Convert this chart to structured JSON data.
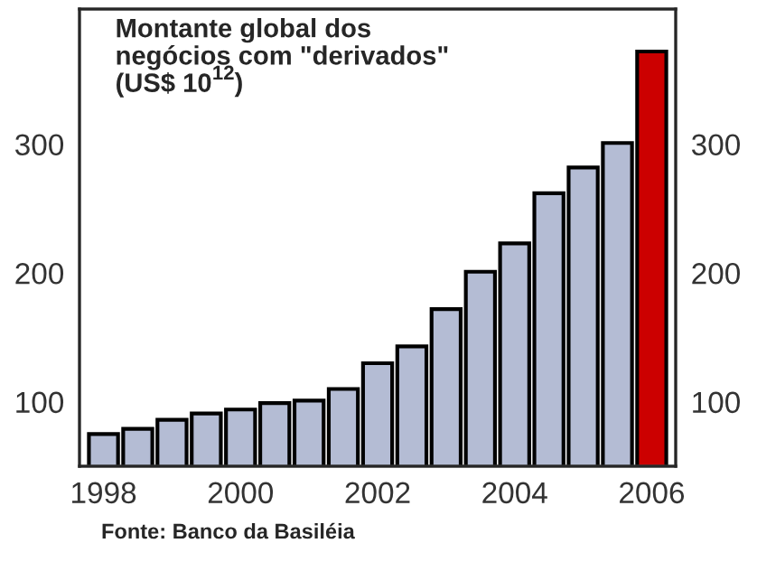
{
  "chart_data": {
    "type": "bar",
    "title": "Montante global dos\nnegócios com \"derivados\"\n(US$ 10$^{12}$)",
    "categories": [
      "1998",
      null,
      null,
      null,
      "2000",
      null,
      null,
      null,
      "2002",
      null,
      null,
      null,
      "2004",
      null,
      null,
      null,
      "2006"
    ],
    "values": [
      75,
      79,
      86,
      91,
      94,
      99,
      101,
      110,
      130,
      143,
      172,
      201,
      223,
      262,
      282,
      301,
      372
    ],
    "colors": [
      "#b4bcd4",
      "#b4bcd4",
      "#b4bcd4",
      "#b4bcd4",
      "#b4bcd4",
      "#b4bcd4",
      "#b4bcd4",
      "#b4bcd4",
      "#b4bcd4",
      "#b4bcd4",
      "#b4bcd4",
      "#b4bcd4",
      "#b4bcd4",
      "#b4bcd4",
      "#b4bcd4",
      "#b4bcd4",
      "#cc0000"
    ],
    "ylim": [
      50,
      405
    ],
    "yticks": [
      100,
      200,
      300
    ],
    "y2lim": [
      50,
      405
    ],
    "y2ticks": [
      100,
      200,
      300
    ],
    "grid": false,
    "legend": false,
    "annotations": [
      "Fonte: Banco da Basiléia"
    ]
  }
}
